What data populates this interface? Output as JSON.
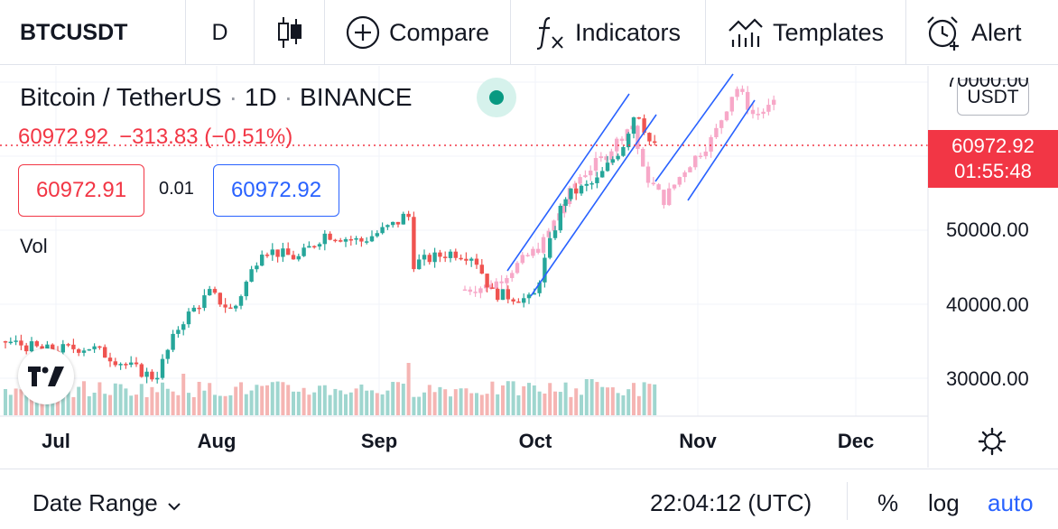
{
  "toolbar": {
    "symbol": "BTCUSDT",
    "interval": "D",
    "compare_label": "Compare",
    "indicators_label": "Indicators",
    "templates_label": "Templates",
    "alert_label": "Alert"
  },
  "legend": {
    "pair": "Bitcoin / TetherUS",
    "interval": "1D",
    "exchange": "BINANCE",
    "last": "60972.92",
    "change": "−313.83 (−0.51%)",
    "bid": "60972.91",
    "spread": "0.01",
    "ask": "60972.92",
    "volume_label": "Vol"
  },
  "price_axis": {
    "currency": "USDT",
    "tag_price": "60972.92",
    "tag_countdown": "01:55:48",
    "labels": [
      "70000.00",
      "50000.00",
      "40000.00",
      "30000.00"
    ]
  },
  "time_axis": {
    "labels": [
      "Jul",
      "Aug",
      "Sep",
      "Oct",
      "Nov",
      "Dec"
    ]
  },
  "bottom_bar": {
    "date_range_label": "Date Range",
    "clock": "22:04:12 (UTC)",
    "percent_label": "%",
    "log_label": "log",
    "auto_label": "auto"
  },
  "colors": {
    "up": "#26a69a",
    "down": "#ef5350",
    "projection": "#f7a8c8",
    "channel": "#2962ff",
    "price_line": "#f23645"
  },
  "chart_data": {
    "type": "candlestick",
    "symbol": "BTCUSDT",
    "interval": "1D",
    "ylim": [
      25000,
      72000
    ],
    "last_price": 60972.92,
    "segments": [
      {
        "kind": "history",
        "approx_closes": [
          {
            "x": "Jul",
            "y": 34000
          },
          {
            "x": "mid-Jul",
            "y": 31000
          },
          {
            "x": "Aug",
            "y": 41500
          },
          {
            "x": "mid-Aug",
            "y": 47000
          },
          {
            "x": "Sep",
            "y": 52500
          },
          {
            "x": "early Sep",
            "y": 45000
          },
          {
            "x": "late Sep",
            "y": 41000
          },
          {
            "x": "Oct",
            "y": 48000
          },
          {
            "x": "mid-Oct",
            "y": 55500
          },
          {
            "x": "late Oct",
            "y": 66500
          },
          {
            "x": "end Oct",
            "y": 61000
          }
        ]
      },
      {
        "kind": "projection",
        "approx_closes": [
          {
            "x": "late Oct",
            "y": 55000
          },
          {
            "x": "Nov",
            "y": 58000
          },
          {
            "x": "mid-Nov",
            "y": 70000
          },
          {
            "x": "late Nov",
            "y": 66000
          }
        ]
      }
    ]
  }
}
